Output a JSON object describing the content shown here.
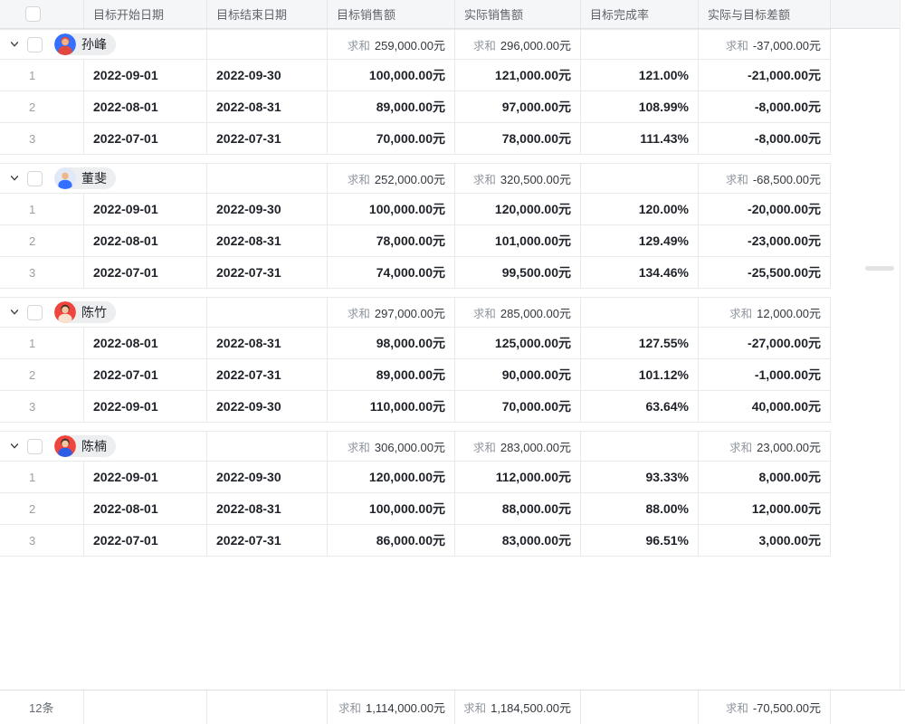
{
  "table": {
    "sum_label": "求和",
    "columns": [
      {
        "key": "start",
        "label": "目标开始日期"
      },
      {
        "key": "end",
        "label": "目标结束日期"
      },
      {
        "key": "target",
        "label": "目标销售额"
      },
      {
        "key": "actual",
        "label": "实际销售额"
      },
      {
        "key": "rate",
        "label": "目标完成率"
      },
      {
        "key": "diff",
        "label": "实际与目标差额"
      }
    ],
    "groups": [
      {
        "name": "孙峰",
        "avatar": {
          "bg": "#3370ff",
          "hair": "#e0483e",
          "head": "#f0b28a",
          "body": "#e0483e"
        },
        "sums": {
          "target": "259,000.00元",
          "actual": "296,000.00元",
          "diff": "-37,000.00元"
        },
        "rows": [
          {
            "idx": "1",
            "start": "2022-09-01",
            "end": "2022-09-30",
            "target": "100,000.00元",
            "actual": "121,000.00元",
            "rate": "121.00%",
            "diff": "-21,000.00元"
          },
          {
            "idx": "2",
            "start": "2022-08-01",
            "end": "2022-08-31",
            "target": "89,000.00元",
            "actual": "97,000.00元",
            "rate": "108.99%",
            "diff": "-8,000.00元"
          },
          {
            "idx": "3",
            "start": "2022-07-01",
            "end": "2022-07-31",
            "target": "70,000.00元",
            "actual": "78,000.00元",
            "rate": "111.43%",
            "diff": "-8,000.00元"
          }
        ]
      },
      {
        "name": "董斐",
        "avatar": {
          "bg": "#e1e9f8",
          "hair": "",
          "head": "#edb98a",
          "body": "#3370ff"
        },
        "sums": {
          "target": "252,000.00元",
          "actual": "320,500.00元",
          "diff": "-68,500.00元"
        },
        "rows": [
          {
            "idx": "1",
            "start": "2022-09-01",
            "end": "2022-09-30",
            "target": "100,000.00元",
            "actual": "120,000.00元",
            "rate": "120.00%",
            "diff": "-20,000.00元"
          },
          {
            "idx": "2",
            "start": "2022-08-01",
            "end": "2022-08-31",
            "target": "78,000.00元",
            "actual": "101,000.00元",
            "rate": "129.49%",
            "diff": "-23,000.00元"
          },
          {
            "idx": "3",
            "start": "2022-07-01",
            "end": "2022-07-31",
            "target": "74,000.00元",
            "actual": "99,500.00元",
            "rate": "134.46%",
            "diff": "-25,500.00元"
          }
        ]
      },
      {
        "name": "陈竹",
        "avatar": {
          "bg": "#f0453e",
          "hair": "#43302a",
          "head": "#f2c6a0",
          "body": "#f7e2d0"
        },
        "sums": {
          "target": "297,000.00元",
          "actual": "285,000.00元",
          "diff": "12,000.00元"
        },
        "rows": [
          {
            "idx": "1",
            "start": "2022-08-01",
            "end": "2022-08-31",
            "target": "98,000.00元",
            "actual": "125,000.00元",
            "rate": "127.55%",
            "diff": "-27,000.00元"
          },
          {
            "idx": "2",
            "start": "2022-07-01",
            "end": "2022-07-31",
            "target": "89,000.00元",
            "actual": "90,000.00元",
            "rate": "101.12%",
            "diff": "-1,000.00元"
          },
          {
            "idx": "3",
            "start": "2022-09-01",
            "end": "2022-09-30",
            "target": "110,000.00元",
            "actual": "70,000.00元",
            "rate": "63.64%",
            "diff": "40,000.00元"
          }
        ]
      },
      {
        "name": "陈楠",
        "avatar": {
          "bg": "#f0453e",
          "hair": "#43302a",
          "head": "#f2c6a0",
          "body": "#2e5ce6"
        },
        "sums": {
          "target": "306,000.00元",
          "actual": "283,000.00元",
          "diff": "23,000.00元"
        },
        "rows": [
          {
            "idx": "1",
            "start": "2022-09-01",
            "end": "2022-09-30",
            "target": "120,000.00元",
            "actual": "112,000.00元",
            "rate": "93.33%",
            "diff": "8,000.00元"
          },
          {
            "idx": "2",
            "start": "2022-08-01",
            "end": "2022-08-31",
            "target": "100,000.00元",
            "actual": "88,000.00元",
            "rate": "88.00%",
            "diff": "12,000.00元"
          },
          {
            "idx": "3",
            "start": "2022-07-01",
            "end": "2022-07-31",
            "target": "86,000.00元",
            "actual": "83,000.00元",
            "rate": "96.51%",
            "diff": "3,000.00元"
          }
        ]
      }
    ],
    "footer": {
      "count": "12条",
      "target": "1,114,000.00元",
      "actual": "1,184,500.00元",
      "diff": "-70,500.00元"
    },
    "theme": {
      "header_bg": "#f5f6f7",
      "border": "#e8e9eb",
      "text": "#1f2329",
      "muted_text": "#8f959e"
    }
  }
}
